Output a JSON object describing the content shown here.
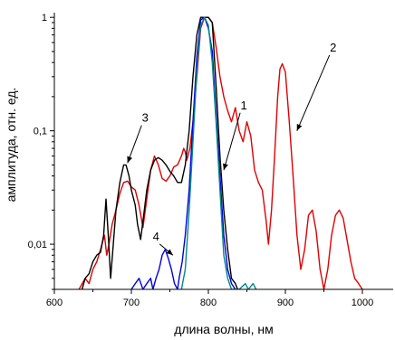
{
  "chart_data": {
    "type": "line",
    "xlabel": "длина волны, нм",
    "ylabel": "амплитуда, отн. ед.",
    "xlim": [
      600,
      1040
    ],
    "ylim": [
      0.004,
      1.1
    ],
    "yscale": "log",
    "x_ticks": [
      600,
      700,
      800,
      900,
      1000
    ],
    "y_ticks": [
      {
        "value": 0.01,
        "label": "0,01"
      },
      {
        "value": 0.1,
        "label": "0,1"
      },
      {
        "value": 1,
        "label": "1"
      }
    ],
    "grid": false,
    "legend": "none",
    "series": [
      {
        "color": "#e00000",
        "x": [
          632,
          640,
          645,
          650,
          655,
          660,
          665,
          668,
          671,
          675,
          680,
          685,
          690,
          695,
          700,
          705,
          710,
          715,
          720,
          725,
          730,
          735,
          740,
          745,
          750,
          755,
          760,
          765,
          768,
          770,
          772,
          776,
          780,
          785,
          790,
          795,
          800,
          805,
          810,
          815,
          820,
          825,
          830,
          835,
          840,
          845,
          850,
          855,
          860,
          865,
          870,
          875,
          878,
          882,
          886,
          890,
          893,
          896,
          900,
          905,
          910,
          915,
          920,
          925,
          930,
          935,
          940,
          945,
          950,
          955,
          960,
          965,
          970,
          975,
          980,
          985,
          990,
          995,
          1000
        ],
        "y": [
          0.004,
          0.005,
          0.0045,
          0.006,
          0.007,
          0.009,
          0.012,
          0.008,
          0.01,
          0.015,
          0.02,
          0.028,
          0.035,
          0.036,
          0.032,
          0.03,
          0.022,
          0.014,
          0.025,
          0.045,
          0.06,
          0.05,
          0.038,
          0.036,
          0.04,
          0.048,
          0.05,
          0.06,
          0.07,
          0.065,
          0.055,
          0.07,
          0.12,
          0.3,
          0.8,
          1.0,
          1.0,
          0.9,
          0.55,
          0.3,
          0.2,
          0.15,
          0.12,
          0.16,
          0.1,
          0.08,
          0.12,
          0.09,
          0.045,
          0.035,
          0.03,
          0.016,
          0.01,
          0.02,
          0.06,
          0.2,
          0.35,
          0.39,
          0.33,
          0.12,
          0.04,
          0.012,
          0.006,
          0.009,
          0.018,
          0.02,
          0.013,
          0.006,
          0.004,
          0.006,
          0.012,
          0.018,
          0.02,
          0.017,
          0.011,
          0.007,
          0.005,
          0.0045,
          0.004
        ]
      },
      {
        "color": "#000000",
        "x": [
          636,
          640,
          645,
          650,
          655,
          660,
          664,
          667,
          670,
          673,
          676,
          680,
          685,
          690,
          693,
          697,
          700,
          705,
          708,
          712,
          716,
          720,
          725,
          730,
          735,
          740,
          745,
          750,
          755,
          760,
          765,
          770,
          775,
          780,
          785,
          790,
          795,
          800,
          805,
          810,
          815,
          820,
          825,
          830,
          835,
          838
        ],
        "y": [
          0.004,
          0.005,
          0.0055,
          0.007,
          0.008,
          0.0085,
          0.012,
          0.025,
          0.012,
          0.005,
          0.009,
          0.02,
          0.035,
          0.05,
          0.05,
          0.04,
          0.03,
          0.022,
          0.015,
          0.011,
          0.018,
          0.03,
          0.045,
          0.055,
          0.058,
          0.055,
          0.05,
          0.044,
          0.04,
          0.035,
          0.035,
          0.05,
          0.1,
          0.3,
          0.7,
          1.0,
          1.0,
          1.0,
          0.9,
          0.25,
          0.06,
          0.02,
          0.009,
          0.005,
          0.0045,
          0.004
        ]
      },
      {
        "color": "#0000dd",
        "x": [
          700,
          705,
          710,
          715,
          720,
          725,
          728,
          732,
          736,
          740,
          744,
          748,
          752,
          756,
          760,
          762,
          766,
          770,
          775,
          780,
          785,
          790,
          795,
          800,
          805,
          810,
          815,
          820,
          825,
          830,
          835
        ],
        "y": [
          0.004,
          0.0045,
          0.005,
          0.004,
          0.0045,
          0.005,
          0.004,
          0.005,
          0.006,
          0.008,
          0.009,
          0.0075,
          0.006,
          0.0045,
          0.004,
          0.005,
          0.007,
          0.012,
          0.03,
          0.12,
          0.45,
          0.95,
          1.0,
          0.8,
          0.5,
          0.14,
          0.04,
          0.012,
          0.006,
          0.0045,
          0.004
        ]
      },
      {
        "color": "#008888",
        "x": [
          765,
          770,
          775,
          780,
          785,
          790,
          795,
          800,
          805,
          810,
          815,
          820,
          825,
          830,
          840,
          848,
          852,
          858,
          862
        ],
        "y": [
          0.004,
          0.006,
          0.02,
          0.08,
          0.35,
          0.85,
          1.0,
          0.85,
          0.4,
          0.12,
          0.03,
          0.008,
          0.005,
          0.004,
          0.004,
          0.0045,
          0.004,
          0.0045,
          0.004
        ]
      }
    ],
    "annotations": [
      {
        "label": "1",
        "text_x": 846,
        "text_y": 0.155,
        "target_x": 820,
        "target_y": 0.045
      },
      {
        "label": "2",
        "text_x": 962,
        "text_y": 0.5,
        "target_x": 915,
        "target_y": 0.1
      },
      {
        "label": "3",
        "text_x": 718,
        "text_y": 0.12,
        "target_x": 695,
        "target_y": 0.052
      },
      {
        "label": "4",
        "text_x": 732,
        "text_y": 0.0108,
        "target_x": 754,
        "target_y": 0.008
      }
    ]
  }
}
